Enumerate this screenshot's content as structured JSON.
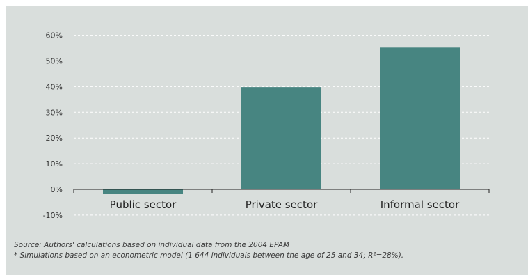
{
  "chart_data": {
    "type": "bar",
    "categories": [
      "Public sector",
      "Private sector",
      "Informal sector"
    ],
    "values": [
      -1.8,
      39.8,
      55.2
    ],
    "yticks": [
      "-10%",
      "0%",
      "10%",
      "20%",
      "30%",
      "40%",
      "50%",
      "60%"
    ],
    "ylim": [
      -10,
      60
    ],
    "grid": true,
    "bar_color": "#478581"
  },
  "notes": {
    "source": "Source: Authors' calculations based on individual data from the 2004 EPAM",
    "footnote": "* Simulations based on an econometric model (1 644 individuals between the age of 25 and 34; R²=28%)."
  }
}
